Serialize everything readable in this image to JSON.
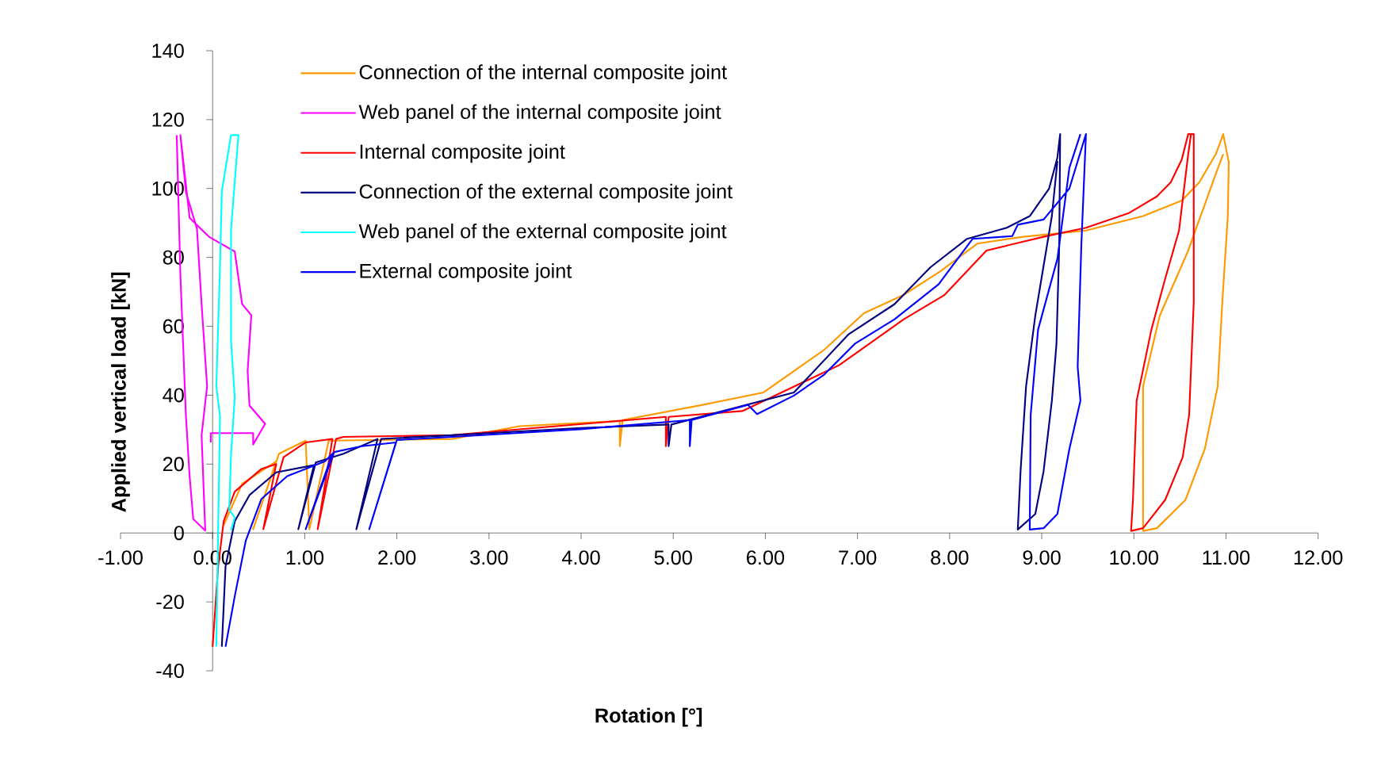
{
  "chart_data": {
    "type": "line",
    "xlabel": "Rotation [°]",
    "ylabel": "Applied vertical load [kN]",
    "xlim": [
      -1,
      12
    ],
    "ylim": [
      -40,
      140
    ],
    "xticks": [
      {
        "value": -1,
        "label": "-1.00"
      },
      {
        "value": 0,
        "label": "0.00"
      },
      {
        "value": 1,
        "label": "1.00"
      },
      {
        "value": 2,
        "label": "2.00"
      },
      {
        "value": 3,
        "label": "3.00"
      },
      {
        "value": 4,
        "label": "4.00"
      },
      {
        "value": 5,
        "label": "5.00"
      },
      {
        "value": 6,
        "label": "6.00"
      },
      {
        "value": 7,
        "label": "7.00"
      },
      {
        "value": 8,
        "label": "8.00"
      },
      {
        "value": 9,
        "label": "9.00"
      },
      {
        "value": 10,
        "label": "10.00"
      },
      {
        "value": 11,
        "label": "11.00"
      },
      {
        "value": 12,
        "label": "12.00"
      }
    ],
    "yticks": [
      -40,
      -20,
      0,
      20,
      40,
      60,
      80,
      100,
      120,
      140
    ],
    "legend": "top left",
    "series": [
      {
        "name": "Connection of the internal composite joint",
        "color": "#ff9900",
        "x": [
          0.12,
          0.32,
          0.69,
          0.44,
          0.72,
          1.01,
          1.05,
          1.26,
          2.6,
          3.33,
          4.42,
          4.42,
          4.45,
          5.32,
          5.98,
          6.64,
          7.07,
          7.5,
          7.9,
          8.3,
          8.8,
          9.48,
          10.1,
          10.52,
          10.71,
          10.89,
          10.97,
          11.03,
          11.02,
          10.96,
          10.91,
          10.77,
          10.56,
          10.25,
          10.1,
          10.1,
          10.28,
          10.59,
          10.89,
          10.97
        ],
        "values": [
          2.3,
          14.3,
          20.8,
          1.1,
          23,
          26.8,
          1.1,
          26.8,
          27.3,
          31,
          32.5,
          25.2,
          32.8,
          37.2,
          40.8,
          53.2,
          63.8,
          69.1,
          76,
          84,
          86,
          87.8,
          92,
          96.5,
          101.8,
          110,
          115.8,
          107.6,
          92,
          67,
          42.6,
          24.4,
          9.6,
          1.4,
          0.6,
          42.6,
          63,
          82,
          104.3,
          110
        ]
      },
      {
        "name": "Web panel of the internal composite joint",
        "color": "#ff00ff",
        "x": [
          -0.39,
          -0.35,
          -0.29,
          -0.25,
          -0.21,
          -0.08,
          -0.12,
          -0.06,
          -0.12,
          -0.17,
          -0.29,
          -0.35,
          -0.25,
          -0.04,
          0.24,
          0.32,
          0.42,
          0.38,
          0.4,
          0.57,
          0.44,
          0.44,
          -0.02,
          -0.02
        ],
        "values": [
          115.5,
          75,
          34,
          16.5,
          4,
          0.7,
          28.4,
          42.6,
          66.5,
          88.3,
          99,
          115.5,
          91.5,
          86,
          81.7,
          66.5,
          63.2,
          47,
          37,
          31.7,
          25.7,
          29,
          29,
          26.3
        ]
      },
      {
        "name": "Internal composite joint",
        "color": "#ff0000",
        "x": [
          0,
          0.06,
          0.12,
          0.24,
          0.53,
          0.69,
          0.55,
          0.77,
          1.01,
          1.3,
          1.14,
          1.34,
          1.42,
          2.6,
          3.5,
          4.92,
          4.92,
          4.95,
          5.75,
          6.8,
          7.5,
          7.94,
          8.4,
          9.02,
          9.48,
          9.94,
          10.25,
          10.4,
          10.52,
          10.59,
          10.65,
          10.65,
          10.6,
          10.53,
          10.34,
          10.1,
          9.97,
          9.99,
          10.03,
          10.19,
          10.34,
          10.49,
          10.59,
          10.62
        ],
        "values": [
          -33,
          -9.7,
          3.4,
          12,
          18.6,
          20,
          1.1,
          22,
          26.3,
          27.3,
          1.1,
          27.3,
          27.9,
          28.4,
          30.5,
          33.7,
          25.2,
          33.7,
          35.4,
          48.7,
          62,
          69,
          82,
          86,
          88.6,
          92.8,
          97.7,
          101.8,
          108.4,
          115.8,
          115.8,
          67,
          34.3,
          22,
          9.6,
          1.4,
          0.6,
          9.6,
          38.4,
          59,
          73.8,
          87.8,
          110,
          115.8
        ]
      },
      {
        "name": "Connection of the external composite joint",
        "color": "#000080",
        "x": [
          0.1,
          0.14,
          0.24,
          0.4,
          0.69,
          1.1,
          0.93,
          1.12,
          1.42,
          1.79,
          1.56,
          1.83,
          2.6,
          4.0,
          4.95,
          4.95,
          4.98,
          6.31,
          6.9,
          7.4,
          7.79,
          8.19,
          8.62,
          8.87,
          9.08,
          9.17,
          9.2,
          9.19,
          9.16,
          9.11,
          9.02,
          8.93,
          8.74,
          8.77,
          8.83,
          8.93,
          9.11,
          9.17
        ],
        "values": [
          -33,
          -9.7,
          3.4,
          11,
          17.6,
          19.7,
          1.1,
          20.5,
          23,
          27.3,
          1.1,
          27.3,
          28.4,
          30.5,
          31.5,
          25.2,
          31.5,
          40.8,
          57.6,
          66.4,
          77.1,
          85.4,
          88.6,
          92,
          100,
          109,
          115.8,
          83.7,
          54.9,
          38.4,
          17.9,
          5.5,
          1,
          17.9,
          42.6,
          63.1,
          92,
          108
        ]
      },
      {
        "name": "Web panel of the external composite joint",
        "color": "#00ffff",
        "x": [
          0.04,
          0.06,
          0.08,
          0.04,
          0.08,
          0.1,
          0.2,
          0.28,
          0.2,
          0.2,
          0.24,
          0.2,
          0.18,
          0.24,
          0.2
        ],
        "values": [
          -33,
          1.2,
          33.8,
          42.6,
          77.4,
          99.2,
          115.5,
          115.5,
          88.3,
          55.6,
          39.3,
          23,
          6.7,
          4.5,
          0.7
        ]
      },
      {
        "name": "External composite joint",
        "color": "#0000ff",
        "x": [
          0.14,
          0.24,
          0.36,
          0.53,
          0.81,
          1.22,
          1.3,
          1.01,
          1.32,
          1.62,
          1.99,
          1.7,
          2.0,
          2.6,
          3.99,
          5.18,
          5.18,
          5.2,
          5.81,
          5.91,
          6.31,
          6.64,
          6.97,
          7.4,
          7.88,
          8.25,
          8.68,
          8.74,
          9.02,
          9.3,
          9.48,
          9.43,
          9.39,
          9.42,
          9.3,
          9.17,
          9.02,
          8.87,
          8.88,
          8.96,
          9.17,
          9.3,
          9.42
        ],
        "values": [
          -33,
          -18.4,
          -2.2,
          9.9,
          16.5,
          20.8,
          23,
          1.1,
          23.5,
          25.2,
          26.3,
          1.1,
          27,
          27.9,
          30.1,
          32.8,
          25.2,
          32.8,
          37.2,
          34.5,
          39.9,
          46,
          54.9,
          62,
          72.2,
          85.4,
          86.2,
          89.5,
          91,
          100,
          115.8,
          83.7,
          48.3,
          38.4,
          24.4,
          5.5,
          1.4,
          1,
          34.3,
          59,
          79.6,
          106,
          115.8
        ]
      }
    ]
  }
}
